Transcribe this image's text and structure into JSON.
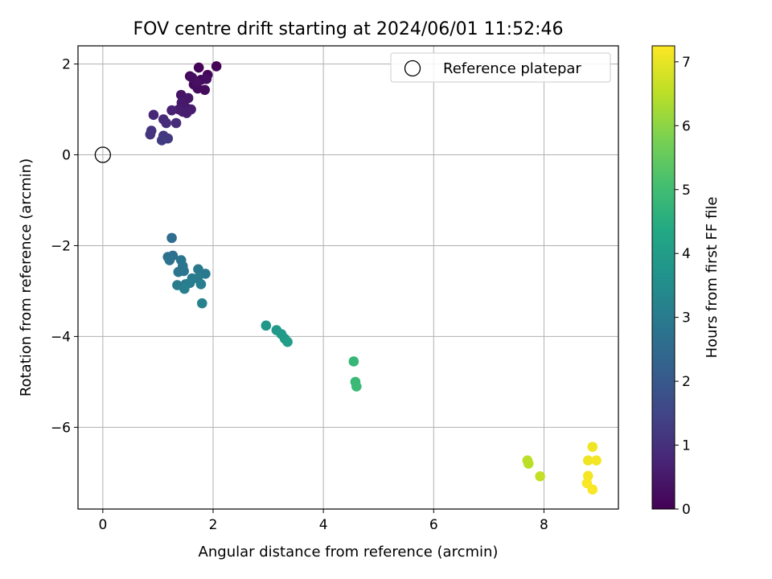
{
  "chart_data": {
    "type": "scatter",
    "title": "FOV centre drift starting at 2024/06/01 11:52:46",
    "xlabel": "Angular distance from reference (arcmin)",
    "ylabel": "Rotation from reference (arcmin)",
    "xlim": [
      -0.45,
      9.35
    ],
    "ylim": [
      -7.8,
      2.4
    ],
    "xticks": [
      0,
      2,
      4,
      6,
      8
    ],
    "yticks": [
      -6,
      -4,
      -2,
      0,
      2
    ],
    "grid": true,
    "legend": {
      "position": "top-right",
      "entries": [
        "Reference platepar"
      ]
    },
    "reference_point": {
      "x": 0,
      "y": 0,
      "label": "Reference platepar"
    },
    "colorbar": {
      "label": "Hours from first FF file",
      "colormap": "viridis",
      "range": [
        0,
        7.25
      ],
      "ticks": [
        0,
        1,
        2,
        3,
        4,
        5,
        6,
        7
      ]
    },
    "points": [
      {
        "x": 1.74,
        "y": 1.92,
        "c": 0.05
      },
      {
        "x": 2.06,
        "y": 1.95,
        "c": 0.05
      },
      {
        "x": 1.58,
        "y": 1.73,
        "c": 0.1
      },
      {
        "x": 1.9,
        "y": 1.76,
        "c": 0.1
      },
      {
        "x": 1.78,
        "y": 1.65,
        "c": 0.15
      },
      {
        "x": 1.65,
        "y": 1.55,
        "c": 0.15
      },
      {
        "x": 1.72,
        "y": 1.46,
        "c": 0.2
      },
      {
        "x": 1.85,
        "y": 1.43,
        "c": 0.2
      },
      {
        "x": 1.88,
        "y": 1.67,
        "c": 0.25
      },
      {
        "x": 1.62,
        "y": 1.7,
        "c": 0.25
      },
      {
        "x": 1.7,
        "y": 1.6,
        "c": 0.3
      },
      {
        "x": 1.42,
        "y": 1.32,
        "c": 0.4
      },
      {
        "x": 1.55,
        "y": 1.25,
        "c": 0.45
      },
      {
        "x": 1.43,
        "y": 1.15,
        "c": 0.5
      },
      {
        "x": 1.5,
        "y": 1.05,
        "c": 0.5
      },
      {
        "x": 1.38,
        "y": 1.0,
        "c": 0.55
      },
      {
        "x": 1.6,
        "y": 1.0,
        "c": 0.55
      },
      {
        "x": 1.52,
        "y": 0.92,
        "c": 0.6
      },
      {
        "x": 1.45,
        "y": 0.95,
        "c": 0.6
      },
      {
        "x": 1.25,
        "y": 0.98,
        "c": 0.7
      },
      {
        "x": 0.92,
        "y": 0.88,
        "c": 0.8
      },
      {
        "x": 1.1,
        "y": 0.78,
        "c": 0.85
      },
      {
        "x": 1.15,
        "y": 0.7,
        "c": 0.9
      },
      {
        "x": 1.33,
        "y": 0.7,
        "c": 0.9
      },
      {
        "x": 0.88,
        "y": 0.53,
        "c": 1.05
      },
      {
        "x": 0.86,
        "y": 0.45,
        "c": 1.1
      },
      {
        "x": 1.1,
        "y": 0.42,
        "c": 1.15
      },
      {
        "x": 1.18,
        "y": 0.36,
        "c": 1.2
      },
      {
        "x": 1.07,
        "y": 0.32,
        "c": 1.25
      },
      {
        "x": 1.25,
        "y": -1.83,
        "c": 2.6
      },
      {
        "x": 1.18,
        "y": -2.25,
        "c": 2.65
      },
      {
        "x": 1.27,
        "y": -2.22,
        "c": 2.7
      },
      {
        "x": 1.21,
        "y": -2.32,
        "c": 2.75
      },
      {
        "x": 1.42,
        "y": -2.32,
        "c": 2.8
      },
      {
        "x": 1.45,
        "y": -2.45,
        "c": 2.8
      },
      {
        "x": 1.37,
        "y": -2.58,
        "c": 2.85
      },
      {
        "x": 1.47,
        "y": -2.56,
        "c": 2.85
      },
      {
        "x": 1.73,
        "y": -2.52,
        "c": 2.9
      },
      {
        "x": 1.86,
        "y": -2.62,
        "c": 2.95
      },
      {
        "x": 1.62,
        "y": -2.72,
        "c": 2.95
      },
      {
        "x": 1.72,
        "y": -2.72,
        "c": 3.0
      },
      {
        "x": 1.35,
        "y": -2.87,
        "c": 3.0
      },
      {
        "x": 1.5,
        "y": -2.85,
        "c": 3.0
      },
      {
        "x": 1.58,
        "y": -2.82,
        "c": 3.05
      },
      {
        "x": 1.78,
        "y": -2.85,
        "c": 3.05
      },
      {
        "x": 1.48,
        "y": -2.95,
        "c": 3.1
      },
      {
        "x": 1.8,
        "y": -3.27,
        "c": 3.2
      },
      {
        "x": 2.96,
        "y": -3.76,
        "c": 3.8
      },
      {
        "x": 3.15,
        "y": -3.86,
        "c": 3.85
      },
      {
        "x": 3.24,
        "y": -3.95,
        "c": 3.9
      },
      {
        "x": 3.3,
        "y": -4.05,
        "c": 3.95
      },
      {
        "x": 3.35,
        "y": -4.12,
        "c": 4.0
      },
      {
        "x": 4.55,
        "y": -4.55,
        "c": 4.8
      },
      {
        "x": 4.58,
        "y": -5.0,
        "c": 4.85
      },
      {
        "x": 4.6,
        "y": -5.1,
        "c": 4.9
      },
      {
        "x": 7.7,
        "y": -6.73,
        "c": 6.5
      },
      {
        "x": 7.72,
        "y": -6.8,
        "c": 6.5
      },
      {
        "x": 7.93,
        "y": -7.08,
        "c": 6.6
      },
      {
        "x": 8.88,
        "y": -6.43,
        "c": 7.1
      },
      {
        "x": 8.8,
        "y": -6.73,
        "c": 7.1
      },
      {
        "x": 8.95,
        "y": -6.73,
        "c": 7.15
      },
      {
        "x": 8.8,
        "y": -7.07,
        "c": 7.15
      },
      {
        "x": 8.78,
        "y": -7.23,
        "c": 7.2
      },
      {
        "x": 8.88,
        "y": -7.37,
        "c": 7.2
      }
    ]
  }
}
